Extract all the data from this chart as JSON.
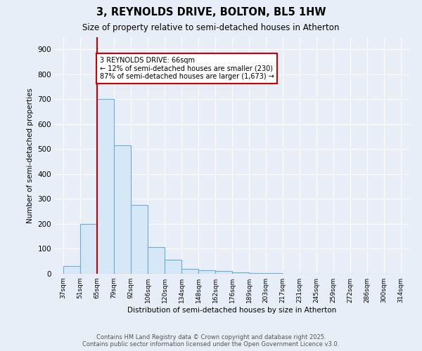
{
  "title": "3, REYNOLDS DRIVE, BOLTON, BL5 1HW",
  "subtitle": "Size of property relative to semi-detached houses in Atherton",
  "xlabel": "Distribution of semi-detached houses by size in Atherton",
  "ylabel": "Number of semi-detached properties",
  "categories": [
    "37sqm",
    "51sqm",
    "65sqm",
    "79sqm",
    "92sqm",
    "106sqm",
    "120sqm",
    "134sqm",
    "148sqm",
    "162sqm",
    "176sqm",
    "189sqm",
    "203sqm",
    "217sqm",
    "231sqm",
    "245sqm",
    "259sqm",
    "272sqm",
    "286sqm",
    "300sqm",
    "314sqm"
  ],
  "bar_heights": [
    30,
    200,
    700,
    515,
    275,
    108,
    55,
    20,
    13,
    10,
    7,
    4,
    4,
    0,
    0,
    0,
    0,
    0,
    0,
    0
  ],
  "ylim": [
    0,
    950
  ],
  "yticks": [
    0,
    100,
    200,
    300,
    400,
    500,
    600,
    700,
    800,
    900
  ],
  "property_line_x": 2,
  "annotation_text": "3 REYNOLDS DRIVE: 66sqm\n← 12% of semi-detached houses are smaller (230)\n87% of semi-detached houses are larger (1,673) →",
  "bar_color": "#d6e8f7",
  "bar_edge_color": "#6aaed6",
  "line_color": "#cc0000",
  "annotation_box_color": "#cc0000",
  "background_color": "#e8eef8",
  "plot_bg_color": "#e8eef8",
  "footer_line1": "Contains HM Land Registry data © Crown copyright and database right 2025.",
  "footer_line2": "Contains public sector information licensed under the Open Government Licence v3.0."
}
